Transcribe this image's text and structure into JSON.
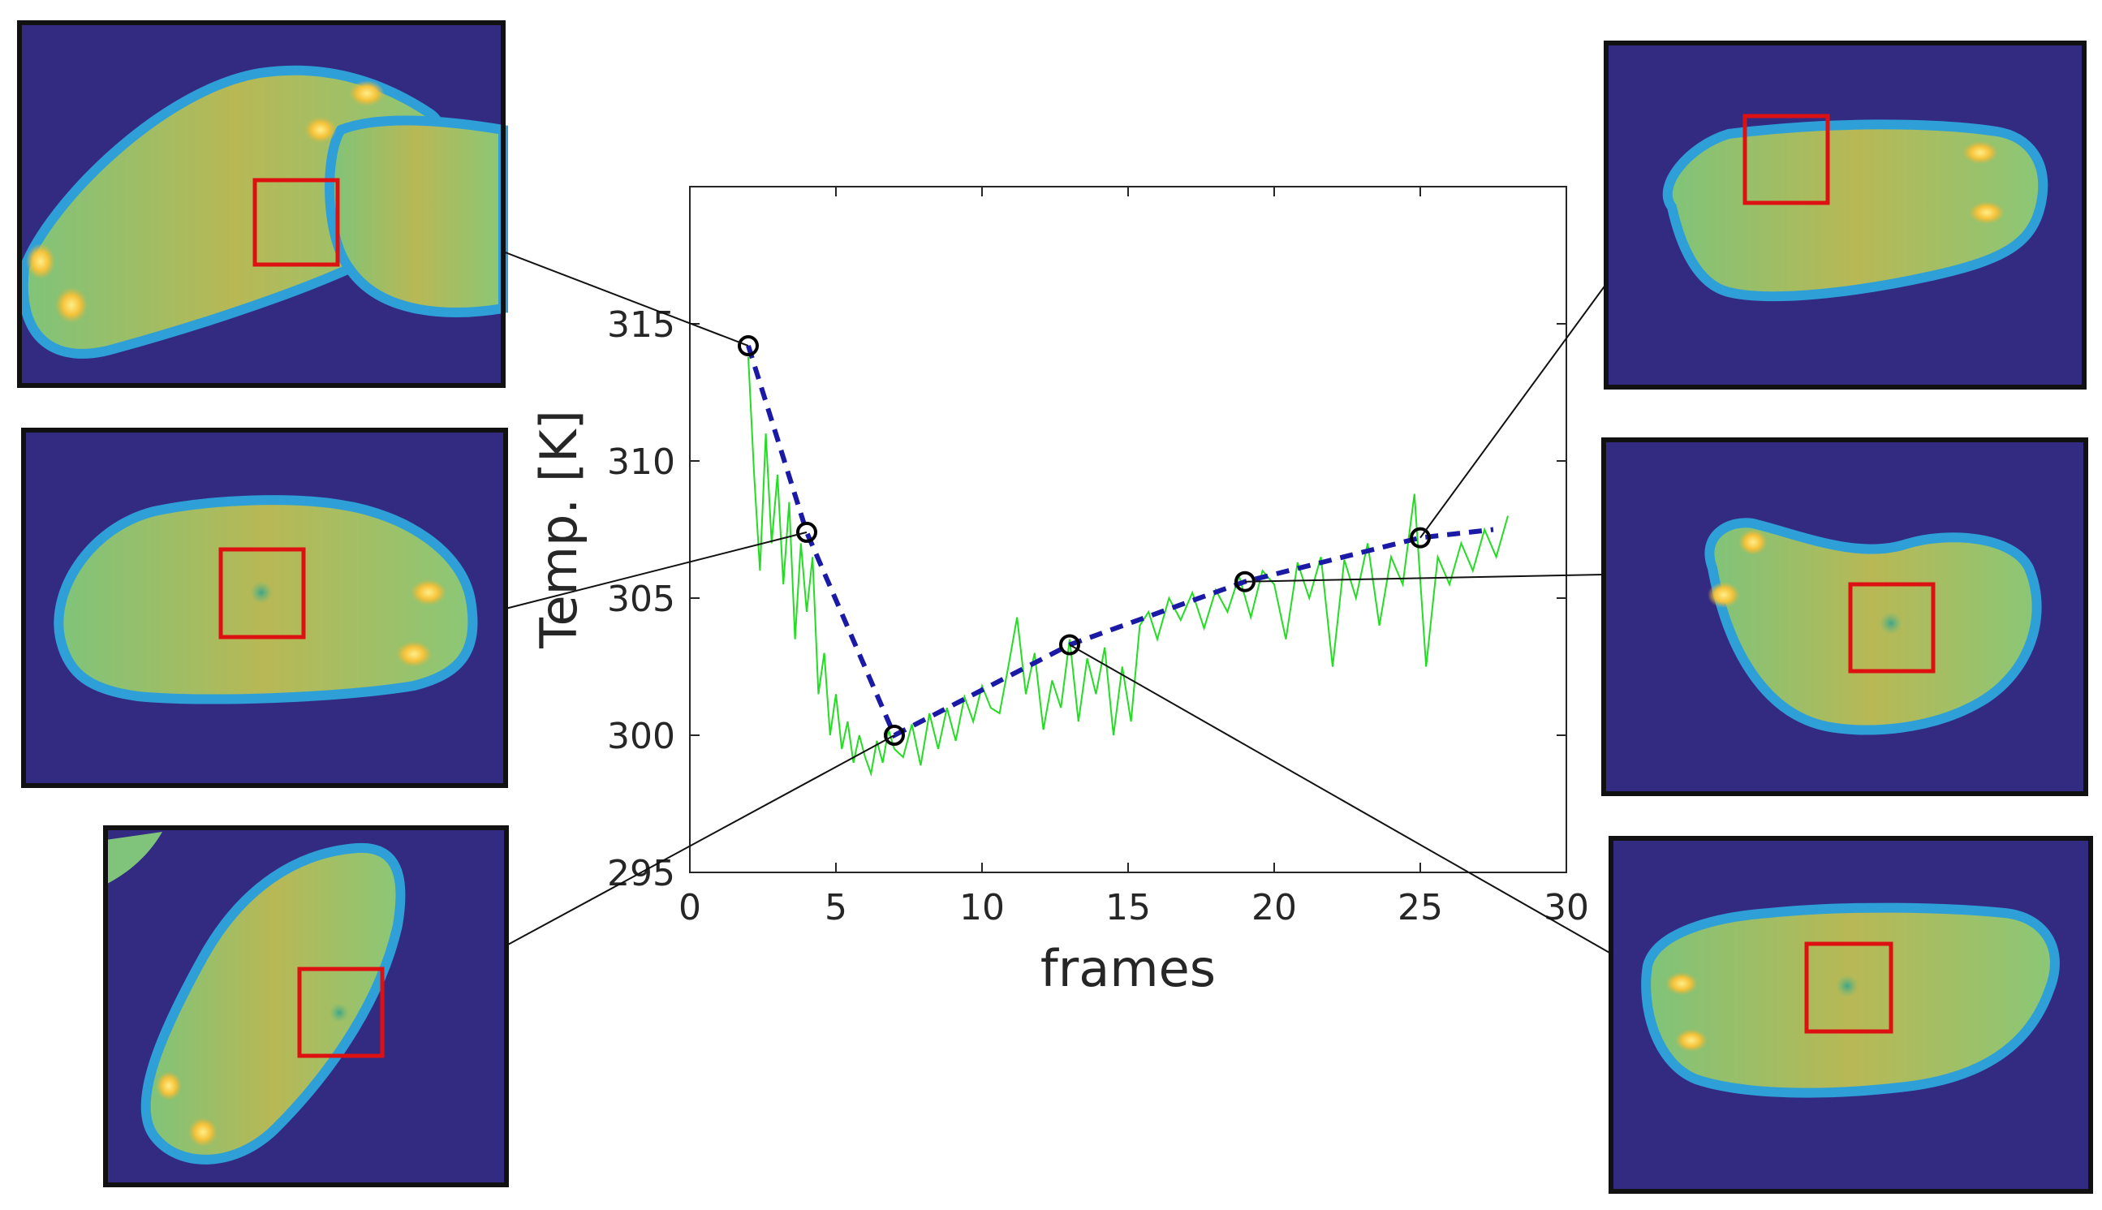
{
  "chart_data": {
    "type": "line",
    "xlabel": "frames",
    "ylabel": "Temp. [K]",
    "xlim": [
      0,
      30
    ],
    "ylim": [
      295,
      320
    ],
    "xticks": [
      0,
      5,
      10,
      15,
      20,
      25,
      30
    ],
    "yticks": [
      295,
      300,
      305,
      310,
      315
    ],
    "grid": false,
    "series": [
      {
        "style": "thin-solid",
        "color": "#22dd22",
        "x": [
          2.0,
          2.2,
          2.4,
          2.6,
          2.8,
          3.0,
          3.2,
          3.4,
          3.6,
          3.8,
          4.0,
          4.2,
          4.4,
          4.6,
          4.8,
          5.0,
          5.2,
          5.4,
          5.6,
          5.8,
          6.0,
          6.2,
          6.4,
          6.6,
          6.8,
          7.0,
          7.3,
          7.6,
          7.9,
          8.2,
          8.5,
          8.8,
          9.1,
          9.4,
          9.7,
          10.0,
          10.3,
          10.6,
          10.9,
          11.2,
          11.5,
          11.8,
          12.1,
          12.4,
          12.7,
          13.0,
          13.3,
          13.6,
          13.9,
          14.2,
          14.5,
          14.8,
          15.1,
          15.4,
          15.7,
          16.0,
          16.4,
          16.8,
          17.2,
          17.6,
          18.0,
          18.4,
          18.8,
          19.2,
          19.6,
          20.0,
          20.4,
          20.8,
          21.2,
          21.6,
          22.0,
          22.4,
          22.8,
          23.2,
          23.6,
          24.0,
          24.4,
          24.8,
          25.2,
          25.6,
          26.0,
          26.4,
          26.8,
          27.2,
          27.6,
          28.0
        ],
        "y": [
          313.8,
          309.5,
          306.0,
          311.0,
          307.0,
          309.5,
          305.5,
          308.5,
          303.5,
          307.0,
          304.5,
          306.5,
          301.5,
          303.0,
          300.0,
          301.5,
          299.5,
          300.5,
          299.0,
          300.0,
          299.2,
          298.6,
          299.8,
          299.0,
          300.2,
          299.5,
          299.2,
          300.4,
          298.9,
          300.8,
          299.5,
          301.0,
          299.8,
          301.4,
          300.5,
          301.8,
          301.0,
          300.8,
          302.5,
          304.3,
          301.5,
          303.0,
          300.2,
          302.0,
          301.0,
          303.5,
          300.5,
          302.8,
          301.5,
          303.2,
          300.0,
          302.5,
          300.5,
          304.0,
          304.5,
          303.5,
          305.0,
          304.2,
          305.2,
          303.9,
          305.3,
          304.5,
          305.8,
          304.3,
          306.0,
          305.5,
          303.5,
          306.3,
          305.0,
          306.5,
          302.5,
          306.4,
          305.0,
          307.0,
          304.0,
          306.5,
          305.5,
          308.8,
          302.5,
          306.5,
          305.5,
          307.0,
          306.0,
          307.5,
          306.5,
          308.0
        ]
      },
      {
        "style": "dashed",
        "color": "#1a1aa6",
        "x": [
          2,
          4,
          7,
          13,
          19,
          25,
          27.5
        ],
        "y": [
          314.2,
          307.4,
          300.0,
          303.3,
          305.6,
          307.2,
          307.5
        ]
      }
    ],
    "markers": [
      {
        "x": 2,
        "y": 314.2
      },
      {
        "x": 4,
        "y": 307.4
      },
      {
        "x": 7,
        "y": 300.0
      },
      {
        "x": 13,
        "y": 303.3
      },
      {
        "x": 19,
        "y": 305.6
      },
      {
        "x": 25,
        "y": 307.2
      }
    ]
  },
  "insets": [
    {
      "id": "top-left",
      "marker_index": 0,
      "background": "#332b82",
      "box_color": "#dd1111"
    },
    {
      "id": "middle-left",
      "marker_index": 1,
      "background": "#332b82",
      "box_color": "#dd1111"
    },
    {
      "id": "bottom-left",
      "marker_index": 2,
      "background": "#332b82",
      "box_color": "#dd1111"
    },
    {
      "id": "top-right",
      "marker_index": 5,
      "background": "#332b82",
      "box_color": "#dd1111"
    },
    {
      "id": "middle-right",
      "marker_index": 4,
      "background": "#332b82",
      "box_color": "#dd1111"
    },
    {
      "id": "bottom-right",
      "marker_index": 3,
      "background": "#332b82",
      "box_color": "#dd1111"
    }
  ]
}
